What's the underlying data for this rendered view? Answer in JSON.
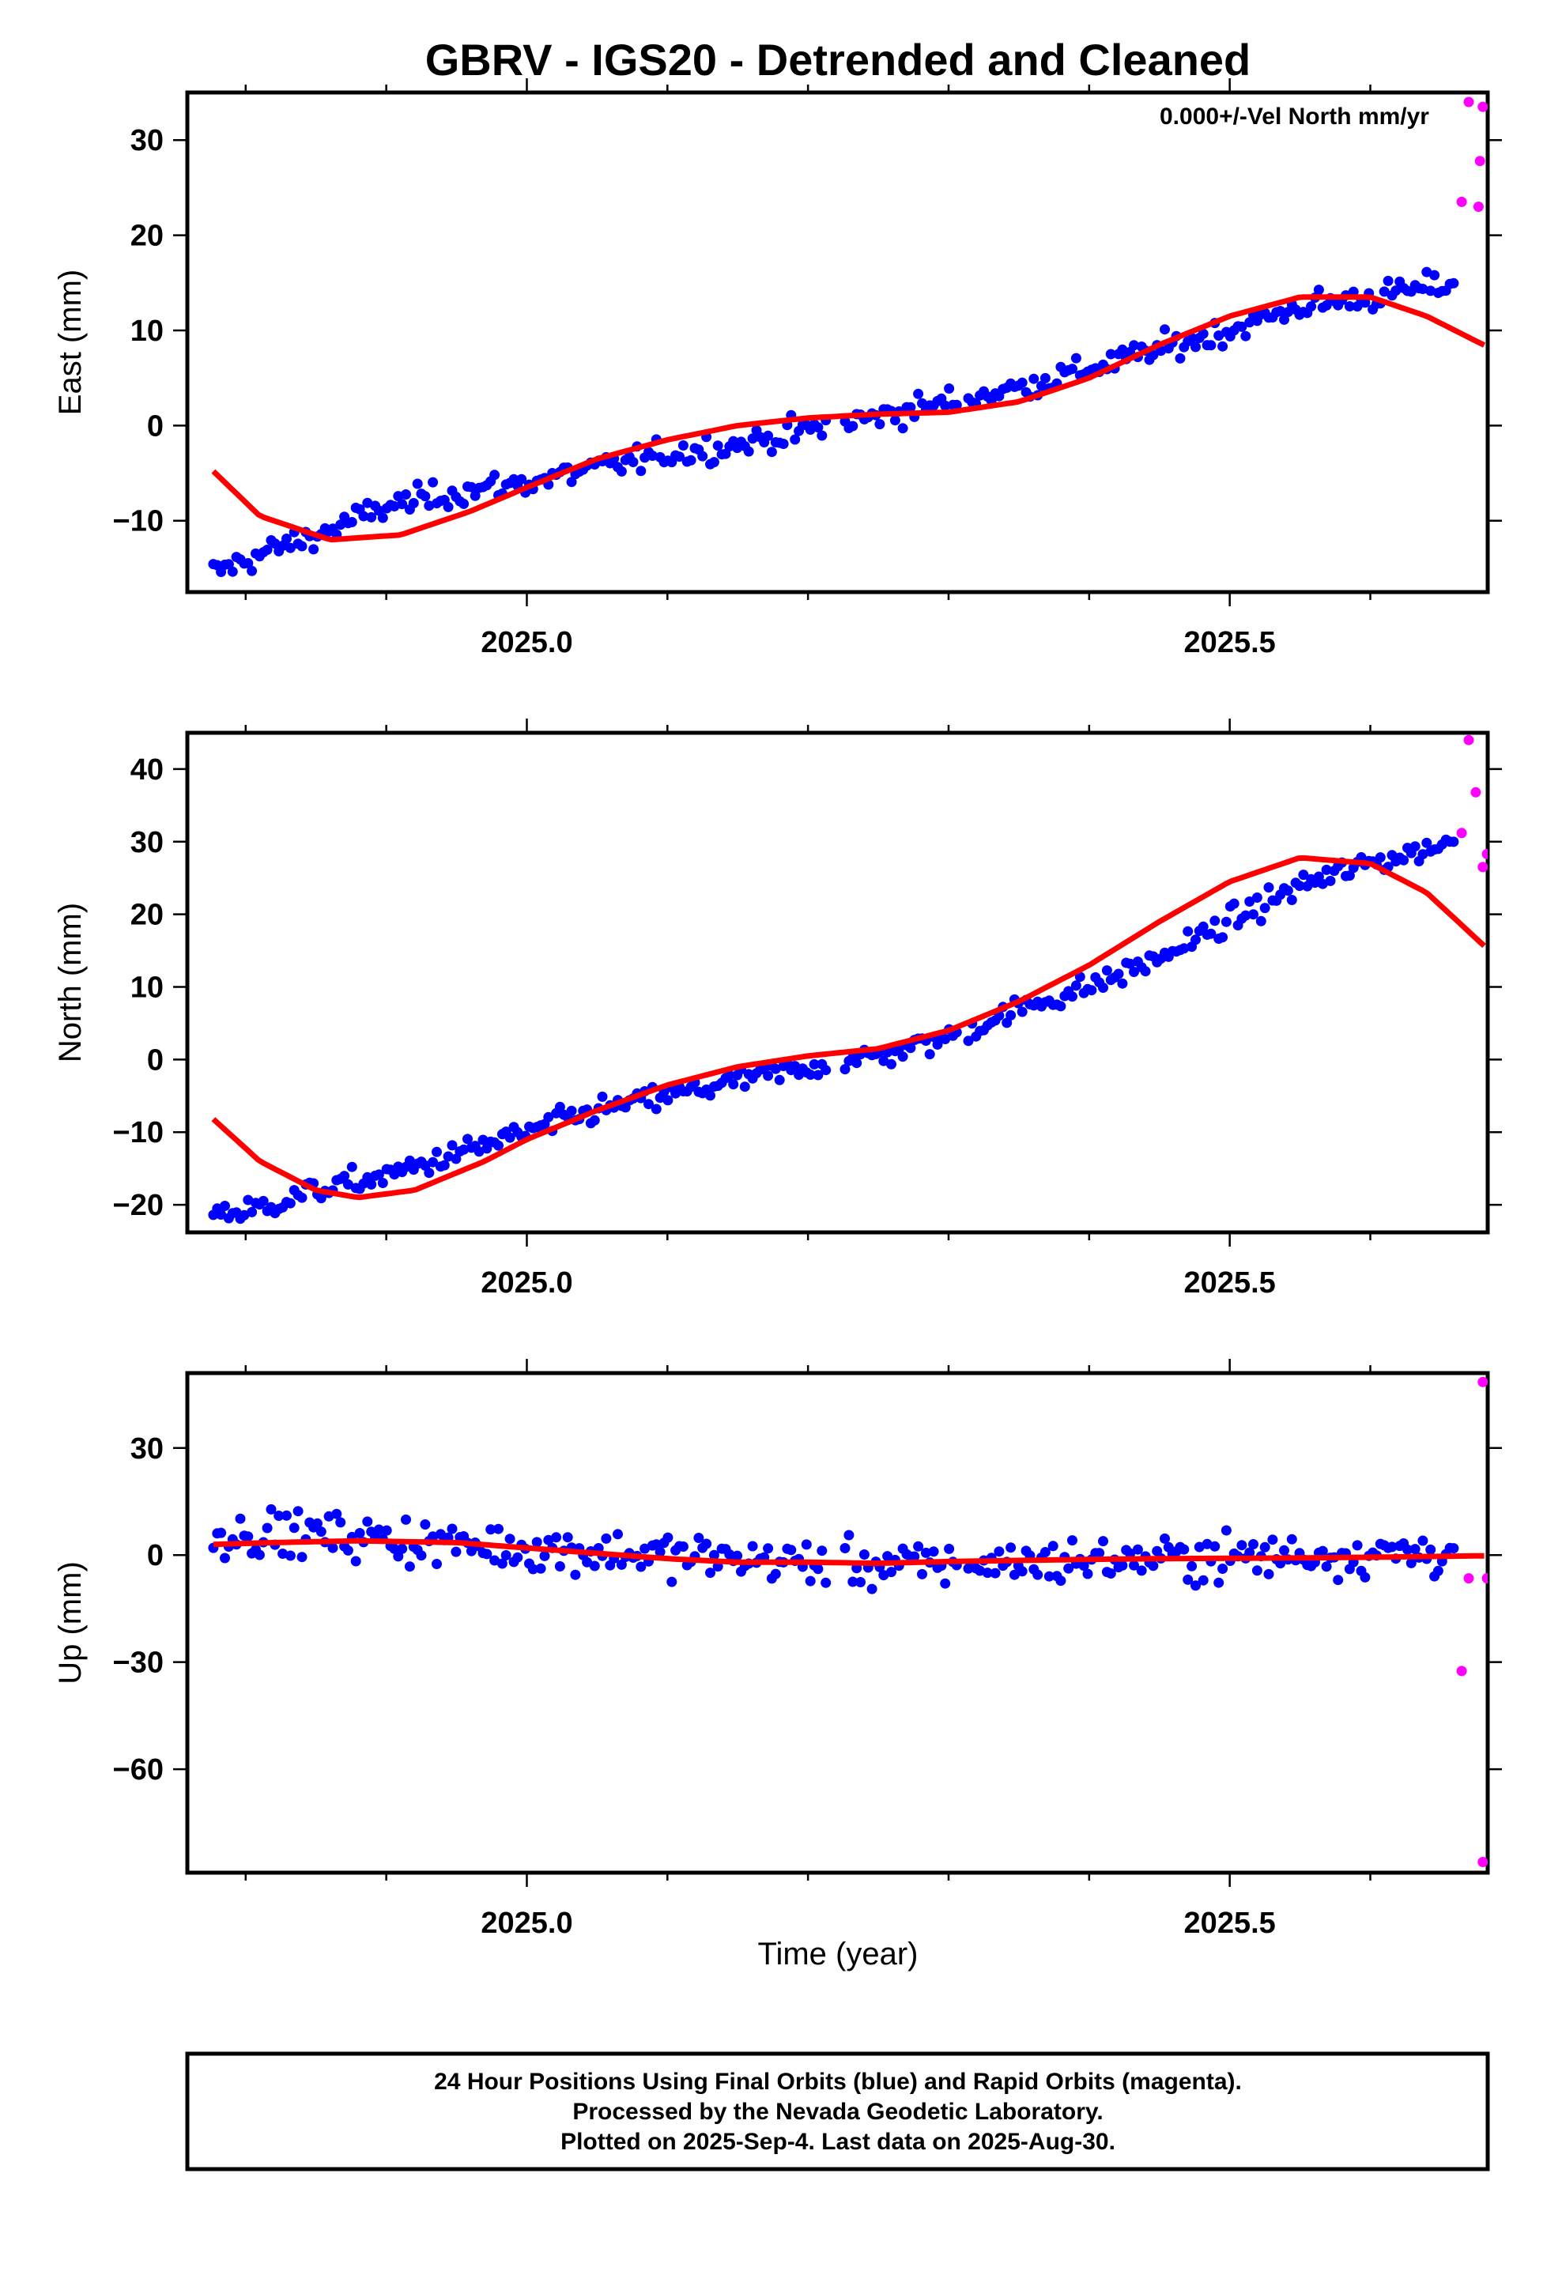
{
  "title": "GBRV - IGS20 - Detrended and Cleaned",
  "annotation": "0.000+/-Vel North mm/yr",
  "xlabel": "Time (year)",
  "caption": [
    "24 Hour Positions Using Final Orbits (blue) and Rapid Orbits (magenta).",
    "Processed by the Nevada Geodetic Laboratory.",
    "Plotted on 2025-Sep-4. Last data on 2025-Aug-30."
  ],
  "colors": {
    "final": "#0000ff",
    "rapid": "#ff00ff",
    "fit": "#ff0000"
  },
  "chart_data": [
    {
      "type": "scatter",
      "name": "east",
      "ylabel": "East (mm)",
      "xlim": [
        2024.7585,
        2025.6835
      ],
      "ylim": [
        -17.5,
        35
      ],
      "xticks": [
        2025.0,
        2025.5
      ],
      "xtick_labels": [
        "2025.0",
        "2025.5"
      ],
      "xminor": [
        2024.8,
        2024.9,
        2025.1,
        2025.2,
        2025.3,
        2025.4,
        2025.6
      ],
      "yticks": [
        -10,
        0,
        10,
        20,
        30
      ],
      "ytick_labels": [
        "−10",
        "0",
        "10",
        "20",
        "30"
      ],
      "final_anchors": [
        [
          2024.777,
          -15.5
        ],
        [
          2024.82,
          -13
        ],
        [
          2024.86,
          -11
        ],
        [
          2024.9,
          -8.5
        ],
        [
          2024.95,
          -7
        ],
        [
          2025.0,
          -6
        ],
        [
          2025.05,
          -4.5
        ],
        [
          2025.1,
          -3
        ],
        [
          2025.15,
          -2
        ],
        [
          2025.2,
          -0.5
        ],
        [
          2025.25,
          1
        ],
        [
          2025.3,
          2.5
        ],
        [
          2025.35,
          4
        ],
        [
          2025.4,
          6
        ],
        [
          2025.45,
          8
        ],
        [
          2025.5,
          10
        ],
        [
          2025.55,
          12.5
        ],
        [
          2025.6,
          13.5
        ],
        [
          2025.66,
          15
        ]
      ],
      "final_noise": 1.0,
      "rapid": [
        [
          2025.665,
          23.5
        ],
        [
          2025.67,
          34.0
        ],
        [
          2025.677,
          23.0
        ],
        [
          2025.68,
          33.5
        ],
        [
          2025.678,
          27.8
        ]
      ],
      "fit": [
        [
          2024.777,
          -4.8
        ],
        [
          2024.81,
          -9.5
        ],
        [
          2024.86,
          -12
        ],
        [
          2024.91,
          -11.5
        ],
        [
          2024.96,
          -9
        ],
        [
          2025.0,
          -6.5
        ],
        [
          2025.05,
          -3.5
        ],
        [
          2025.1,
          -1.5
        ],
        [
          2025.15,
          0
        ],
        [
          2025.2,
          0.8
        ],
        [
          2025.25,
          1.2
        ],
        [
          2025.3,
          1.4
        ],
        [
          2025.35,
          2.5
        ],
        [
          2025.4,
          5
        ],
        [
          2025.45,
          8.5
        ],
        [
          2025.5,
          11.5
        ],
        [
          2025.55,
          13.5
        ],
        [
          2025.6,
          13.5
        ],
        [
          2025.64,
          11.5
        ],
        [
          2025.683,
          8.3
        ]
      ]
    },
    {
      "type": "scatter",
      "name": "north",
      "ylabel": "North (mm)",
      "xlim": [
        2024.7585,
        2025.6835
      ],
      "ylim": [
        -23.8,
        45
      ],
      "xticks": [
        2025.0,
        2025.5
      ],
      "xtick_labels": [
        "2025.0",
        "2025.5"
      ],
      "xminor": [
        2024.8,
        2024.9,
        2025.1,
        2025.2,
        2025.3,
        2025.4,
        2025.6
      ],
      "yticks": [
        -20,
        -10,
        0,
        10,
        20,
        30,
        40
      ],
      "ytick_labels": [
        "−20",
        "−10",
        "0",
        "10",
        "20",
        "30",
        "40"
      ],
      "final_anchors": [
        [
          2024.777,
          -21
        ],
        [
          2024.8,
          -21
        ],
        [
          2024.85,
          -18
        ],
        [
          2024.9,
          -16
        ],
        [
          2024.95,
          -13
        ],
        [
          2025.0,
          -10
        ],
        [
          2025.05,
          -7
        ],
        [
          2025.1,
          -5
        ],
        [
          2025.15,
          -3
        ],
        [
          2025.2,
          -1
        ],
        [
          2025.25,
          0.5
        ],
        [
          2025.3,
          3
        ],
        [
          2025.35,
          7
        ],
        [
          2025.4,
          10
        ],
        [
          2025.45,
          14
        ],
        [
          2025.5,
          19
        ],
        [
          2025.55,
          24
        ],
        [
          2025.6,
          27
        ],
        [
          2025.66,
          30
        ]
      ],
      "final_noise": 1.2,
      "rapid": [
        [
          2025.665,
          31.2
        ],
        [
          2025.67,
          44.0
        ],
        [
          2025.675,
          36.8
        ],
        [
          2025.68,
          26.5
        ],
        [
          2025.683,
          28.3
        ]
      ],
      "fit": [
        [
          2024.777,
          -8.2
        ],
        [
          2024.81,
          -14
        ],
        [
          2024.85,
          -18
        ],
        [
          2024.88,
          -19
        ],
        [
          2024.92,
          -18
        ],
        [
          2024.97,
          -14
        ],
        [
          2025.0,
          -11
        ],
        [
          2025.05,
          -7
        ],
        [
          2025.1,
          -3.5
        ],
        [
          2025.15,
          -1
        ],
        [
          2025.2,
          0.5
        ],
        [
          2025.25,
          1.5
        ],
        [
          2025.3,
          4
        ],
        [
          2025.35,
          8
        ],
        [
          2025.4,
          13
        ],
        [
          2025.45,
          19
        ],
        [
          2025.5,
          24.5
        ],
        [
          2025.55,
          27.8
        ],
        [
          2025.6,
          27
        ],
        [
          2025.64,
          23
        ],
        [
          2025.683,
          15.3
        ]
      ]
    },
    {
      "type": "scatter",
      "name": "up",
      "ylabel": "Up (mm)",
      "xlim": [
        2024.7585,
        2025.6835
      ],
      "ylim": [
        -89,
        51
      ],
      "xticks": [
        2025.0,
        2025.5
      ],
      "xtick_labels": [
        "2025.0",
        "2025.5"
      ],
      "xminor": [
        2024.8,
        2024.9,
        2025.1,
        2025.2,
        2025.3,
        2025.4,
        2025.6
      ],
      "yticks": [
        -60,
        -30,
        0,
        30
      ],
      "ytick_labels": [
        "−60",
        "−30",
        "0",
        "30"
      ],
      "final_anchors": [
        [
          2024.777,
          6
        ],
        [
          2024.85,
          6
        ],
        [
          2024.95,
          3
        ],
        [
          2025.05,
          1
        ],
        [
          2025.15,
          -1
        ],
        [
          2025.25,
          -3
        ],
        [
          2025.35,
          -2
        ],
        [
          2025.45,
          -1
        ],
        [
          2025.55,
          0
        ],
        [
          2025.66,
          1
        ]
      ],
      "final_noise": 4.5,
      "rapid": [
        [
          2025.67,
          -6.5
        ],
        [
          2025.683,
          -6.5
        ],
        [
          2025.665,
          -32.5
        ],
        [
          2025.68,
          48.5
        ],
        [
          2025.68,
          -86
        ]
      ],
      "fit": [
        [
          2024.777,
          3
        ],
        [
          2024.82,
          3.5
        ],
        [
          2024.88,
          4
        ],
        [
          2024.95,
          3.5
        ],
        [
          2025.0,
          2
        ],
        [
          2025.05,
          0.5
        ],
        [
          2025.1,
          -1
        ],
        [
          2025.15,
          -2
        ],
        [
          2025.2,
          -2
        ],
        [
          2025.25,
          -2.3
        ],
        [
          2025.3,
          -1.8
        ],
        [
          2025.35,
          -1.5
        ],
        [
          2025.4,
          -1.2
        ],
        [
          2025.45,
          -1.0
        ],
        [
          2025.5,
          -0.9
        ],
        [
          2025.55,
          -0.8
        ],
        [
          2025.6,
          -0.6
        ],
        [
          2025.683,
          -0.2
        ]
      ]
    }
  ]
}
